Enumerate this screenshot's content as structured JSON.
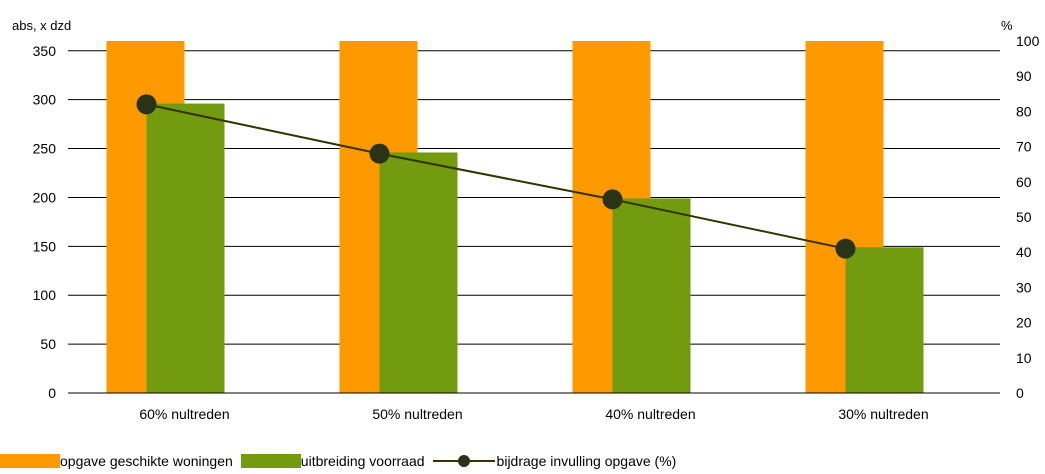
{
  "chart_data": {
    "type": "bar",
    "categories": [
      "60% nultreden",
      "50% nultreden",
      "40% nultreden",
      "30% nultreden"
    ],
    "series": [
      {
        "name": "opgave geschikte woningen",
        "type": "bar",
        "axis": "left",
        "color": "#FF9900",
        "values": [
          360,
          360,
          360,
          360
        ]
      },
      {
        "name": "uitbreiding voorraad",
        "type": "bar",
        "axis": "left",
        "color": "#739B0F",
        "values": [
          296,
          246,
          199,
          149
        ]
      },
      {
        "name": "bijdrage invulling opgave (%)",
        "type": "line",
        "axis": "right",
        "color": "#333300",
        "marker_color": "#2A3317",
        "values": [
          82,
          68,
          55,
          41
        ]
      }
    ],
    "left_axis": {
      "label": "abs, x dzd",
      "min": 0,
      "max": 360,
      "ticks": [
        0,
        50,
        100,
        150,
        200,
        250,
        300,
        350
      ]
    },
    "right_axis": {
      "label": "%",
      "min": 0,
      "max": 100,
      "ticks": [
        0,
        10,
        20,
        30,
        40,
        50,
        60,
        70,
        80,
        90,
        100
      ]
    },
    "grid": true,
    "legend_position": "bottom"
  }
}
